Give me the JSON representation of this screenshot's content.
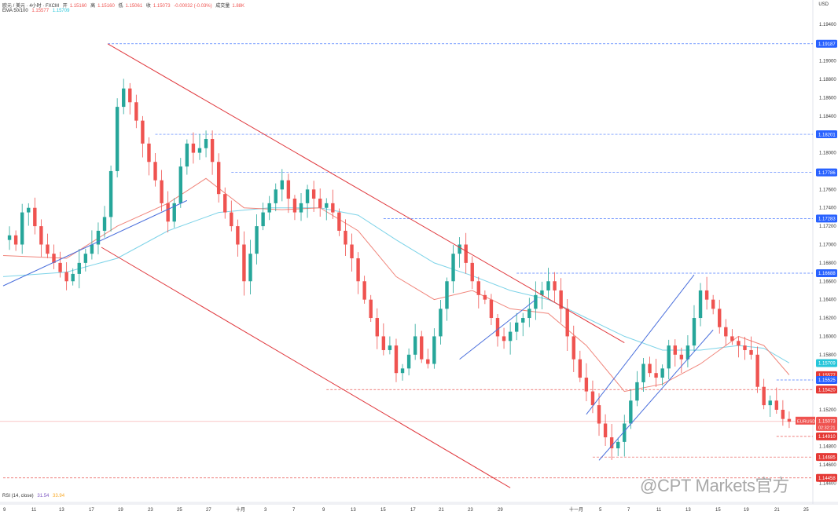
{
  "header": {
    "symbol_line": "欧元 / 美元 · 4小时 · FXCM",
    "ohlc": [
      {
        "key": "开",
        "value": "1.15160"
      },
      {
        "key": "高",
        "value": "1.15160"
      },
      {
        "key": "低",
        "value": "1.15061"
      },
      {
        "key": "收",
        "value": "1.15073"
      }
    ],
    "change": "-0.00032 (-0.03%)",
    "volume_label": "成交量",
    "volume": "1.88K",
    "ema_label": "EMA 50/100",
    "ema50": "1.15577",
    "ema100": "1.15709",
    "currency": "USD"
  },
  "rsi": {
    "label": "RSI (14, close)",
    "v1": "31.54",
    "v2": "33.94"
  },
  "watermark": "@CPT Markets官方",
  "colors": {
    "up": "#26a69a",
    "down": "#ef5350",
    "ema50": "#f0857b",
    "ema100": "#7dd3e8",
    "channel_red": "#e0393e",
    "channel_blue": "#4a6fdc",
    "level_blue": "#2962ff",
    "level_red": "#e53935"
  },
  "chart_data": {
    "type": "candlestick",
    "ylim": [
      1.1443,
      1.1951
    ],
    "y_ticks": [
      "1.19400",
      "1.19000",
      "1.18800",
      "1.18600",
      "1.18400",
      "1.18200",
      "1.18000",
      "1.17800",
      "1.17600",
      "1.17400",
      "1.17200",
      "1.17000",
      "1.16800",
      "1.16600",
      "1.16400",
      "1.16200",
      "1.16000",
      "1.15800",
      "1.15400",
      "1.15200",
      "1.14800",
      "1.14600",
      "1.14400"
    ],
    "x_ticks": [
      "9",
      "11",
      "13",
      "17",
      "19",
      "23",
      "25",
      "27",
      "十月",
      "3",
      "7",
      "9",
      "13",
      "15",
      "17",
      "21",
      "23",
      "29",
      "十一月",
      "5",
      "7",
      "11",
      "13",
      "15",
      "19",
      "21",
      "25"
    ],
    "price_labels": [
      {
        "text": "1.19187",
        "value": 1.19187,
        "style": "blue"
      },
      {
        "text": "1.18201",
        "value": 1.18201,
        "style": "blue"
      },
      {
        "text": "1.17786",
        "value": 1.17786,
        "style": "blue"
      },
      {
        "text": "1.17283",
        "value": 1.17283,
        "style": "blue"
      },
      {
        "text": "1.16688",
        "value": 1.16688,
        "style": "blue"
      },
      {
        "text": "1.15709",
        "value": 1.15709,
        "style": "cyan"
      },
      {
        "text": "1.15577",
        "value": 1.15577,
        "style": "red"
      },
      {
        "text": "1.15525",
        "value": 1.15525,
        "style": "blue"
      },
      {
        "text": "1.15420",
        "value": 1.1542,
        "style": "red"
      },
      {
        "text": "1.14910",
        "value": 1.1491,
        "style": "red"
      },
      {
        "text": "1.14685",
        "value": 1.14685,
        "style": "red"
      },
      {
        "text": "1.14458",
        "value": 1.14458,
        "style": "red"
      }
    ],
    "current": {
      "symbol": "EURUSD",
      "price": "1.15073",
      "value": 1.15073,
      "countdown": "02:32:21"
    },
    "path": [
      [
        0,
        1.1705
      ],
      [
        1,
        1.171
      ],
      [
        2,
        1.17
      ],
      [
        3,
        1.1735
      ],
      [
        4,
        1.174
      ],
      [
        5,
        1.172
      ],
      [
        6,
        1.17
      ],
      [
        7,
        1.169
      ],
      [
        8,
        1.168
      ],
      [
        9,
        1.167
      ],
      [
        10,
        1.166
      ],
      [
        11,
        1.1668
      ],
      [
        12,
        1.168
      ],
      [
        13,
        1.169
      ],
      [
        14,
        1.17
      ],
      [
        15,
        1.1715
      ],
      [
        16,
        1.173
      ],
      [
        17,
        1.178
      ],
      [
        18,
        1.185
      ],
      [
        19,
        1.187
      ],
      [
        20,
        1.1855
      ],
      [
        21,
        1.1835
      ],
      [
        22,
        1.181
      ],
      [
        23,
        1.179
      ],
      [
        24,
        1.177
      ],
      [
        25,
        1.1745
      ],
      [
        26,
        1.1725
      ],
      [
        27,
        1.1745
      ],
      [
        28,
        1.1785
      ],
      [
        29,
        1.181
      ],
      [
        30,
        1.18
      ],
      [
        31,
        1.1805
      ],
      [
        32,
        1.1815
      ],
      [
        33,
        1.179
      ],
      [
        34,
        1.1755
      ],
      [
        35,
        1.1735
      ],
      [
        36,
        1.172
      ],
      [
        37,
        1.17
      ],
      [
        38,
        1.166
      ],
      [
        39,
        1.169
      ],
      [
        40,
        1.172
      ],
      [
        41,
        1.1735
      ],
      [
        42,
        1.1745
      ],
      [
        43,
        1.176
      ],
      [
        44,
        1.177
      ],
      [
        45,
        1.175
      ],
      [
        46,
        1.1735
      ],
      [
        47,
        1.1745
      ],
      [
        48,
        1.176
      ],
      [
        49,
        1.175
      ],
      [
        50,
        1.174
      ],
      [
        51,
        1.1745
      ],
      [
        52,
        1.1735
      ],
      [
        53,
        1.1715
      ],
      [
        54,
        1.17
      ],
      [
        55,
        1.1685
      ],
      [
        56,
        1.166
      ],
      [
        57,
        1.164
      ],
      [
        58,
        1.162
      ],
      [
        59,
        1.16
      ],
      [
        60,
        1.1585
      ],
      [
        61,
        1.159
      ],
      [
        62,
        1.156
      ],
      [
        63,
        1.1565
      ],
      [
        64,
        1.158
      ],
      [
        65,
        1.16
      ],
      [
        66,
        1.1575
      ],
      [
        67,
        1.157
      ],
      [
        68,
        1.16
      ],
      [
        69,
        1.163
      ],
      [
        70,
        1.166
      ],
      [
        71,
        1.169
      ],
      [
        72,
        1.17
      ],
      [
        73,
        1.168
      ],
      [
        74,
        1.166
      ],
      [
        75,
        1.1645
      ],
      [
        76,
        1.164
      ],
      [
        77,
        1.162
      ],
      [
        78,
        1.16
      ],
      [
        79,
        1.1595
      ],
      [
        80,
        1.1605
      ],
      [
        81,
        1.1615
      ],
      [
        82,
        1.162
      ],
      [
        83,
        1.163
      ],
      [
        84,
        1.1645
      ],
      [
        85,
        1.165
      ],
      [
        86,
        1.166
      ],
      [
        87,
        1.165
      ],
      [
        88,
        1.163
      ],
      [
        89,
        1.16
      ],
      [
        90,
        1.1575
      ],
      [
        91,
        1.1555
      ],
      [
        92,
        1.154
      ],
      [
        93,
        1.1525
      ],
      [
        94,
        1.1505
      ],
      [
        95,
        1.149
      ],
      [
        96,
        1.1478
      ],
      [
        97,
        1.1485
      ],
      [
        98,
        1.1505
      ],
      [
        99,
        1.153
      ],
      [
        100,
        1.155
      ],
      [
        101,
        1.157
      ],
      [
        102,
        1.156
      ],
      [
        103,
        1.1555
      ],
      [
        104,
        1.1565
      ],
      [
        105,
        1.159
      ],
      [
        106,
        1.158
      ],
      [
        107,
        1.1575
      ],
      [
        108,
        1.159
      ],
      [
        109,
        1.162
      ],
      [
        110,
        1.165
      ],
      [
        111,
        1.164
      ],
      [
        112,
        1.163
      ],
      [
        113,
        1.161
      ],
      [
        114,
        1.16
      ],
      [
        115,
        1.1595
      ],
      [
        116,
        1.159
      ],
      [
        117,
        1.1585
      ],
      [
        118,
        1.158
      ],
      [
        119,
        1.1545
      ],
      [
        120,
        1.1525
      ],
      [
        121,
        1.153
      ],
      [
        122,
        1.152
      ],
      [
        123,
        1.151
      ],
      [
        124,
        1.1507
      ]
    ],
    "ema50_line": [
      [
        0,
        1.1688
      ],
      [
        10,
        1.1685
      ],
      [
        18,
        1.172
      ],
      [
        26,
        1.1745
      ],
      [
        32,
        1.1772
      ],
      [
        38,
        1.174
      ],
      [
        44,
        1.1738
      ],
      [
        50,
        1.174
      ],
      [
        56,
        1.1715
      ],
      [
        62,
        1.1665
      ],
      [
        68,
        1.164
      ],
      [
        74,
        1.165
      ],
      [
        80,
        1.163
      ],
      [
        86,
        1.1625
      ],
      [
        92,
        1.159
      ],
      [
        98,
        1.154
      ],
      [
        104,
        1.1548
      ],
      [
        110,
        1.157
      ],
      [
        116,
        1.16
      ],
      [
        120,
        1.159
      ],
      [
        124,
        1.1558
      ]
    ],
    "ema100_line": [
      [
        0,
        1.1665
      ],
      [
        10,
        1.167
      ],
      [
        18,
        1.1685
      ],
      [
        26,
        1.1715
      ],
      [
        34,
        1.1735
      ],
      [
        42,
        1.174
      ],
      [
        50,
        1.174
      ],
      [
        56,
        1.1732
      ],
      [
        62,
        1.1705
      ],
      [
        68,
        1.168
      ],
      [
        74,
        1.1666
      ],
      [
        80,
        1.165
      ],
      [
        86,
        1.164
      ],
      [
        92,
        1.162
      ],
      [
        98,
        1.16
      ],
      [
        104,
        1.1585
      ],
      [
        110,
        1.1585
      ],
      [
        116,
        1.159
      ],
      [
        120,
        1.1587
      ],
      [
        124,
        1.1571
      ]
    ],
    "trend_lines": [
      {
        "color": "red",
        "from": [
          16.5,
          1.19187
        ],
        "to": [
          98,
          1.1593
        ]
      },
      {
        "color": "red",
        "from": [
          15.5,
          1.1697
        ],
        "to": [
          80,
          1.1435
        ]
      },
      {
        "color": "blue",
        "from": [
          0,
          1.1655
        ],
        "to": [
          29,
          1.1748
        ]
      },
      {
        "color": "blue",
        "from": [
          72,
          1.1575
        ],
        "to": [
          84,
          1.164
        ]
      },
      {
        "color": "blue",
        "from": [
          92,
          1.1515
        ],
        "to": [
          109,
          1.1667
        ]
      },
      {
        "color": "blue",
        "from": [
          94,
          1.1465
        ],
        "to": [
          112,
          1.1607
        ]
      }
    ],
    "dashed_levels": [
      {
        "value": 1.19187,
        "from": 16.5,
        "color": "blue"
      },
      {
        "value": 1.18201,
        "from": 24,
        "color": "blue"
      },
      {
        "value": 1.17786,
        "from": 36,
        "color": "blue"
      },
      {
        "value": 1.17283,
        "from": 60,
        "color": "blue"
      },
      {
        "value": 1.16688,
        "from": 81,
        "color": "blue"
      },
      {
        "value": 1.15525,
        "from": 122,
        "color": "blue"
      },
      {
        "value": 1.1542,
        "from": 51,
        "color": "red"
      },
      {
        "value": 1.1491,
        "from": 122,
        "color": "red"
      },
      {
        "value": 1.14685,
        "from": 93,
        "color": "red"
      },
      {
        "value": 1.14458,
        "from": 0,
        "color": "red"
      }
    ]
  }
}
